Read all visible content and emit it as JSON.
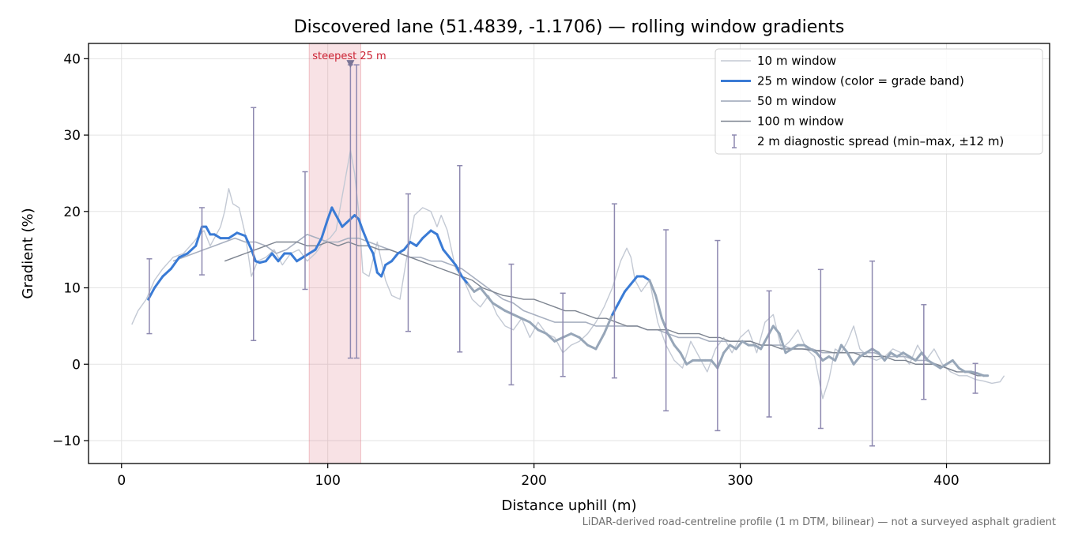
{
  "chart_data": {
    "type": "line",
    "title": "Discovered lane (51.4839, -1.1706) — rolling window gradients",
    "xlabel": "Distance uphill (m)",
    "ylabel": "Gradient (%)",
    "xlim": [
      -16,
      450
    ],
    "ylim": [
      -13,
      42
    ],
    "xticks": [
      0,
      100,
      200,
      300,
      400
    ],
    "yticks": [
      -10,
      0,
      10,
      20,
      30,
      40
    ],
    "grid": true,
    "legend_position": "upper right",
    "footnote": "LiDAR-derived road-centreline profile (1 m DTM, bilinear) — not a surveyed asphalt gradient",
    "highlight": {
      "x_start": 91,
      "x_end": 116,
      "label": "steepest 25 m",
      "marker_x": 111,
      "marker_y": 39.3,
      "color": "#d9606f"
    },
    "series": [
      {
        "name": "10 m window",
        "color": "#c3c9d4",
        "x": [
          5,
          8,
          12,
          16,
          20,
          25,
          30,
          35,
          38,
          40,
          43,
          45,
          48,
          50,
          52,
          54,
          57,
          60,
          63,
          66,
          70,
          74,
          78,
          82,
          86,
          90,
          94,
          98,
          101,
          104,
          107,
          109,
          111,
          113,
          115,
          117,
          120,
          124,
          128,
          131,
          135,
          138,
          142,
          146,
          150,
          153,
          155,
          158,
          162,
          166,
          170,
          174,
          178,
          182,
          186,
          190,
          194,
          198,
          202,
          206,
          210,
          214,
          218,
          222,
          226,
          230,
          234,
          238,
          242,
          245,
          247,
          249,
          252,
          256,
          260,
          264,
          268,
          272,
          276,
          280,
          284,
          288,
          292,
          296,
          300,
          304,
          308,
          312,
          316,
          320,
          324,
          328,
          332,
          336,
          340,
          343,
          346,
          349,
          352,
          355,
          358,
          362,
          366,
          370,
          374,
          378,
          382,
          386,
          390,
          394,
          398,
          402,
          406,
          410,
          414,
          418,
          422,
          426,
          428
        ],
        "values": [
          5.2,
          7,
          8.5,
          11,
          12.5,
          14,
          14.5,
          16,
          17,
          17.5,
          15.5,
          16.5,
          18,
          20,
          23,
          21,
          20.5,
          17,
          11.5,
          13.5,
          14,
          15,
          13,
          14.5,
          15,
          13.5,
          14.5,
          16,
          16.5,
          17.5,
          22,
          25,
          28,
          25,
          20,
          12,
          11.5,
          16,
          11,
          9,
          8.5,
          13.5,
          19.5,
          20.5,
          20,
          18,
          19.5,
          17.5,
          12.5,
          11,
          8.5,
          7.5,
          9,
          6.5,
          5,
          4.5,
          6,
          3.5,
          5.5,
          4,
          3.5,
          1.5,
          2.5,
          3,
          4,
          5.5,
          7.5,
          10,
          13.5,
          15.2,
          14,
          11,
          9.5,
          11,
          5.5,
          2.5,
          0.5,
          -0.5,
          3,
          1,
          -1,
          2,
          3.5,
          1.5,
          3.5,
          4.5,
          1.5,
          5.5,
          6.5,
          2,
          3,
          4.5,
          2,
          1,
          -4.5,
          -2,
          2,
          1.5,
          3,
          5,
          2,
          1,
          0.5,
          1,
          2,
          1.5,
          0,
          2.5,
          0.5,
          2,
          0,
          -1,
          -1.5,
          -1.5,
          -2,
          -2.2,
          -2.5,
          -2.3,
          -1.5
        ]
      },
      {
        "name": "25 m window (color = grade band)",
        "color": "#3a7bd5",
        "x": [
          13,
          16,
          20,
          24,
          28,
          32,
          36,
          39,
          41,
          43,
          45,
          48,
          52,
          56,
          60,
          63,
          65,
          67,
          70,
          73,
          76,
          79,
          82,
          85,
          88,
          91,
          94,
          97,
          100,
          102,
          103,
          105,
          107,
          109,
          111,
          113,
          115,
          117,
          120,
          122,
          124,
          126,
          128,
          131,
          134,
          137,
          140,
          143,
          146,
          150,
          153,
          156,
          159,
          162,
          165,
          168,
          171,
          174,
          177,
          180,
          183,
          186,
          190,
          194,
          198,
          202,
          206,
          210,
          214,
          218,
          222,
          226,
          230,
          234,
          238,
          241,
          244,
          247,
          250,
          253,
          256,
          259,
          262,
          265,
          268,
          271,
          274,
          277,
          280,
          283,
          286,
          289,
          292,
          295,
          298,
          301,
          304,
          307,
          310,
          313,
          316,
          319,
          322,
          325,
          328,
          331,
          334,
          337,
          340,
          343,
          346,
          349,
          352,
          355,
          358,
          361,
          364,
          367,
          370,
          373,
          376,
          379,
          382,
          385,
          388,
          391,
          394,
          397,
          400,
          403,
          406,
          409,
          412,
          415,
          418,
          420
        ],
        "values": [
          8.5,
          10,
          11.5,
          12.5,
          14,
          14.5,
          15.5,
          18,
          18,
          17,
          17,
          16.5,
          16.5,
          17.2,
          16.8,
          15,
          13.5,
          13.3,
          13.5,
          14.5,
          13.5,
          14.5,
          14.5,
          13.5,
          14,
          14.5,
          15,
          16.5,
          19,
          20.5,
          20,
          19,
          18,
          18.5,
          19,
          19.5,
          19,
          17.5,
          15.5,
          14.5,
          12,
          11.5,
          13,
          13.5,
          14.5,
          15,
          16,
          15.5,
          16.5,
          17.5,
          17,
          15,
          14,
          13,
          11.5,
          10.5,
          9.5,
          10,
          9,
          8,
          7.5,
          7,
          6.5,
          6,
          5.5,
          4.5,
          4,
          3,
          3.5,
          4,
          3.5,
          2.5,
          2,
          4,
          6.5,
          8,
          9.5,
          10.5,
          11.5,
          11.5,
          11,
          9,
          6,
          4,
          2.5,
          1.5,
          0,
          0.5,
          0.5,
          0.5,
          0.5,
          -0.5,
          1.5,
          2.5,
          2,
          3,
          2.5,
          2.5,
          2,
          3.5,
          5,
          4,
          1.5,
          2,
          2.5,
          2.5,
          2,
          1.5,
          0.5,
          1,
          0.5,
          2.5,
          1.5,
          0,
          1,
          1.5,
          2,
          1.5,
          0.5,
          1.5,
          1,
          1.5,
          1,
          0.5,
          1.5,
          0.5,
          0,
          -0.5,
          0,
          0.5,
          -0.5,
          -1,
          -1,
          -1.2,
          -1.5,
          -1.5
        ],
        "grade_band_colors": [
          "#3a7bd5",
          "#97a6b8"
        ],
        "band_switch_x": 168,
        "band_switch_back_x": [
          238,
          256
        ]
      },
      {
        "name": "50 m window",
        "color": "#a8b0c0",
        "x": [
          25,
          30,
          35,
          40,
          45,
          50,
          55,
          60,
          65,
          70,
          75,
          80,
          85,
          90,
          95,
          100,
          105,
          110,
          115,
          120,
          125,
          130,
          135,
          140,
          145,
          150,
          155,
          160,
          165,
          170,
          175,
          180,
          185,
          190,
          195,
          200,
          205,
          210,
          215,
          220,
          225,
          230,
          235,
          240,
          245,
          250,
          255,
          260,
          265,
          270,
          275,
          280,
          285,
          290,
          295,
          300,
          305,
          310,
          315,
          320,
          325,
          330,
          335,
          340,
          345,
          350,
          355,
          360,
          365,
          370,
          375,
          380,
          385,
          390,
          395,
          400,
          405
        ],
        "values": [
          13.5,
          14,
          14.5,
          15,
          15.5,
          16,
          16.5,
          16,
          16,
          15.5,
          14.5,
          15,
          16,
          17,
          16.5,
          16,
          16,
          16.5,
          16.5,
          16,
          15.5,
          15,
          14.5,
          14,
          14,
          13.5,
          13.5,
          13,
          12.5,
          11.5,
          10.5,
          9.5,
          8.5,
          8,
          7,
          6.5,
          6,
          5.5,
          5.5,
          5.5,
          5.5,
          5,
          5,
          5,
          5,
          5,
          4.5,
          4.5,
          4,
          3.5,
          3.5,
          3.5,
          3,
          3,
          3,
          3,
          3,
          2.5,
          2.5,
          2.5,
          2,
          2,
          2,
          1.5,
          1.5,
          1.5,
          1.5,
          1.5,
          1.5,
          1,
          1,
          1,
          0.5,
          0.5,
          0,
          -0.5,
          -1
        ]
      },
      {
        "name": "100 m window",
        "color": "#7d8490",
        "x": [
          50,
          55,
          60,
          65,
          70,
          75,
          80,
          85,
          90,
          95,
          100,
          105,
          110,
          115,
          120,
          125,
          130,
          135,
          140,
          145,
          150,
          155,
          160,
          165,
          170,
          175,
          180,
          185,
          190,
          195,
          200,
          205,
          210,
          215,
          220,
          225,
          230,
          235,
          240,
          245,
          250,
          255,
          260,
          265,
          270,
          275,
          280,
          285,
          290,
          295,
          300,
          305,
          310,
          315,
          320,
          325,
          330,
          335,
          340,
          345,
          350,
          355,
          360,
          365,
          370,
          375,
          380,
          385,
          390,
          395,
          400,
          405,
          410,
          415,
          420
        ],
        "values": [
          13.5,
          14,
          14.5,
          15,
          15.5,
          16,
          16,
          16,
          15.5,
          15.5,
          16,
          15.5,
          16,
          15.5,
          15.5,
          15,
          15,
          14.5,
          14,
          13.5,
          13,
          12.5,
          12,
          11.5,
          11,
          10,
          9.5,
          9,
          8.8,
          8.5,
          8.5,
          8,
          7.5,
          7,
          7,
          6.5,
          6,
          6,
          5.5,
          5,
          5,
          4.5,
          4.5,
          4.5,
          4,
          4,
          4,
          3.5,
          3.5,
          3,
          3,
          3,
          2.5,
          2.5,
          2,
          2,
          2,
          1.8,
          1.8,
          1.5,
          1.5,
          1.5,
          1,
          1,
          1,
          0.5,
          0.5,
          0,
          0,
          0,
          -0.5,
          -1,
          -1,
          -1.5,
          -1.5
        ]
      }
    ],
    "error_bars": {
      "name": "2 m diagnostic spread (min–max, ±12 m)",
      "color": "#8e89b0",
      "points": [
        {
          "x": 13.5,
          "low": 4,
          "high": 13.8
        },
        {
          "x": 39,
          "low": 11.7,
          "high": 20.5
        },
        {
          "x": 64,
          "low": 3.1,
          "high": 33.6
        },
        {
          "x": 89,
          "low": 9.8,
          "high": 25.2
        },
        {
          "x": 111,
          "low": 0.8,
          "high": 39.2
        },
        {
          "x": 114,
          "low": 0.8,
          "high": 39.2
        },
        {
          "x": 139,
          "low": 4.3,
          "high": 22.3
        },
        {
          "x": 164,
          "low": 1.6,
          "high": 26
        },
        {
          "x": 189,
          "low": -2.7,
          "high": 13.1
        },
        {
          "x": 214,
          "low": -1.6,
          "high": 9.3
        },
        {
          "x": 239,
          "low": -1.8,
          "high": 21
        },
        {
          "x": 264,
          "low": -6.1,
          "high": 17.6
        },
        {
          "x": 289,
          "low": -8.7,
          "high": 16.2
        },
        {
          "x": 314,
          "low": -6.9,
          "high": 9.6
        },
        {
          "x": 339,
          "low": -8.4,
          "high": 12.4
        },
        {
          "x": 364,
          "low": -10.7,
          "high": 13.5
        },
        {
          "x": 389,
          "low": -4.6,
          "high": 7.8
        },
        {
          "x": 414,
          "low": -3.8,
          "high": 0.1
        }
      ]
    }
  }
}
